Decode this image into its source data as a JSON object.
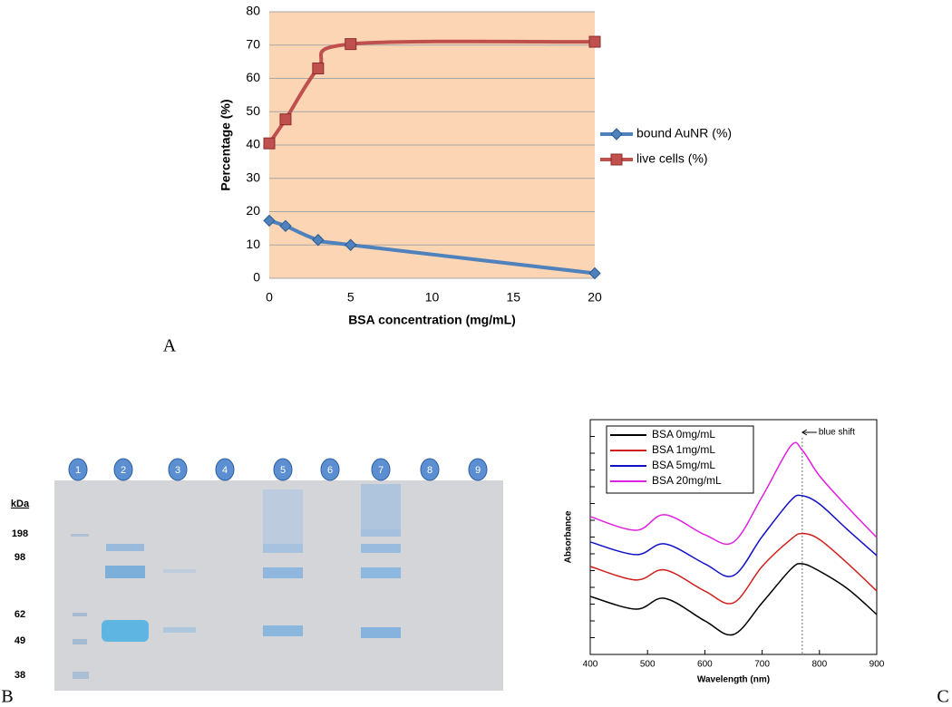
{
  "chart_data": [
    {
      "type": "line",
      "xlabel": "BSA concentration (mg/mL)",
      "ylabel": "Percentage (%)",
      "x": [
        0,
        1,
        3,
        5,
        20
      ],
      "series": [
        {
          "name": "bound AuNR (%)",
          "color": "#4f81bd",
          "marker": "diamond",
          "values": [
            17.3,
            15.7,
            11.5,
            10,
            1.5
          ]
        },
        {
          "name": "live cells (%)",
          "color": "#c0504d",
          "marker": "square",
          "values": [
            40.5,
            47.7,
            63,
            70.3,
            71
          ]
        }
      ],
      "xlim": [
        0,
        20
      ],
      "xticks": [
        0,
        5,
        10,
        15,
        20
      ],
      "ylim": [
        0,
        80
      ],
      "yticks": [
        0,
        10,
        20,
        30,
        40,
        50,
        60,
        70,
        80
      ],
      "grid": true,
      "background": "#fcd5b4",
      "legend": "right"
    },
    {
      "type": "line",
      "xlabel": "Wavelength (nm)",
      "ylabel": "Absorbance",
      "x": [
        400,
        480,
        530,
        600,
        650,
        700,
        750,
        770,
        800,
        850,
        900
      ],
      "series": [
        {
          "name": "BSA 0mg/mL",
          "color": "#000000",
          "values": [
            0.247,
            0.193,
            0.239,
            0.143,
            0.085,
            0.22,
            0.363,
            0.386,
            0.355,
            0.278,
            0.17
          ]
        },
        {
          "name": "BSA 1mg/mL",
          "color": "#d0201e",
          "values": [
            0.375,
            0.317,
            0.36,
            0.27,
            0.22,
            0.375,
            0.49,
            0.515,
            0.49,
            0.386,
            0.27
          ]
        },
        {
          "name": "BSA 5mg/mL",
          "color": "#1010c8",
          "values": [
            0.479,
            0.425,
            0.471,
            0.386,
            0.336,
            0.502,
            0.656,
            0.676,
            0.641,
            0.529,
            0.421
          ]
        },
        {
          "name": "BSA 20mg/mL",
          "color": "#e020e0",
          "values": [
            0.587,
            0.529,
            0.595,
            0.51,
            0.479,
            0.672,
            0.888,
            0.87,
            0.761,
            0.625,
            0.498
          ]
        }
      ],
      "xlim": [
        400,
        900
      ],
      "xticks": [
        400,
        500,
        600,
        700,
        800,
        900
      ],
      "ylim": [
        0,
        1
      ],
      "grid": false,
      "legend": "upper left",
      "annotation": {
        "text": "blue shift",
        "x": 770
      }
    }
  ],
  "gel": {
    "lanes": [
      "1",
      "2",
      "3",
      "4",
      "5",
      "6",
      "7",
      "8",
      "9"
    ],
    "unit": "kDa",
    "markers": [
      "198",
      "98",
      "62",
      "49",
      "38"
    ]
  },
  "panel_labels": [
    "A",
    "B",
    "C"
  ]
}
